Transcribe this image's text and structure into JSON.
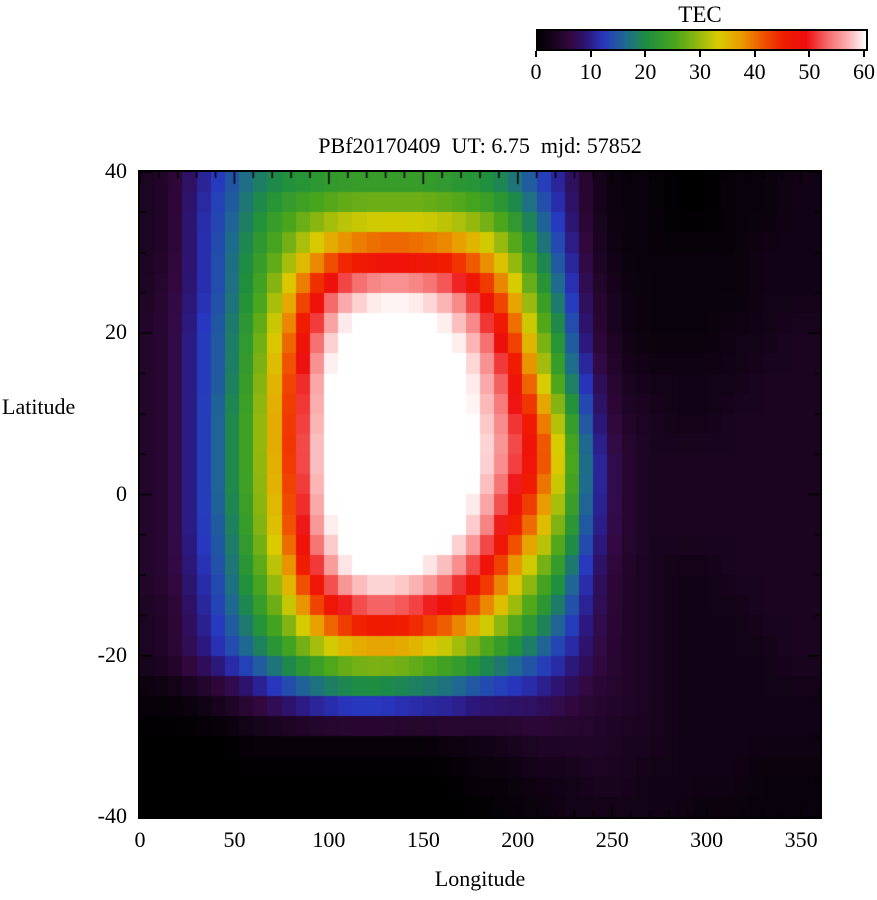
{
  "chart_data": {
    "type": "heatmap",
    "title": "PBf20170409  UT: 6.75  mjd: 57852",
    "xlabel": "Longitude",
    "ylabel": "Latitude",
    "colorbar_label": "TEC",
    "xlim": [
      0,
      360
    ],
    "ylim": [
      -40,
      40
    ],
    "zlim": [
      0,
      60
    ],
    "x_ticks": [
      0,
      50,
      100,
      150,
      200,
      250,
      300,
      350
    ],
    "y_ticks": [
      40,
      20,
      0,
      -20,
      -40
    ],
    "colorbar_ticks": [
      0,
      10,
      20,
      30,
      40,
      50,
      60
    ],
    "lon": [
      0,
      15,
      30,
      45,
      60,
      75,
      90,
      105,
      120,
      135,
      150,
      165,
      180,
      195,
      210,
      225,
      240,
      255,
      270,
      285,
      300,
      315,
      330,
      345
    ],
    "lat": [
      40,
      35,
      30,
      25,
      20,
      15,
      10,
      5,
      0,
      -5,
      -10,
      -15,
      -20,
      -25,
      -30,
      -35,
      -40
    ],
    "tec": [
      [
        3,
        4,
        9,
        13,
        17,
        19,
        20,
        21,
        21,
        21,
        21,
        20,
        19,
        17,
        13,
        9,
        3,
        1,
        1,
        0,
        0,
        1,
        1,
        2
      ],
      [
        3,
        4,
        10,
        14,
        19,
        23,
        26,
        28,
        29,
        29,
        29,
        28,
        26,
        22,
        16,
        10,
        3,
        1,
        1,
        0,
        0,
        1,
        1,
        2
      ],
      [
        3,
        4,
        10,
        15,
        21,
        27,
        34,
        40,
        43,
        44,
        43,
        41,
        37,
        30,
        20,
        12,
        4,
        1,
        1,
        1,
        1,
        1,
        2,
        2
      ],
      [
        3,
        5,
        10,
        15,
        22,
        32,
        44,
        54,
        58,
        59,
        58,
        55,
        48,
        38,
        25,
        14,
        5,
        2,
        1,
        1,
        1,
        1,
        2,
        2
      ],
      [
        4,
        5,
        11,
        16,
        24,
        36,
        50,
        60,
        62,
        62,
        62,
        60,
        55,
        45,
        30,
        17,
        6,
        2,
        1,
        1,
        1,
        2,
        2,
        3
      ],
      [
        4,
        5,
        11,
        16,
        25,
        38,
        54,
        62,
        63,
        63,
        63,
        62,
        58,
        50,
        35,
        20,
        8,
        3,
        2,
        2,
        2,
        2,
        3,
        3
      ],
      [
        4,
        5,
        11,
        17,
        26,
        39,
        55,
        62,
        63,
        63,
        63,
        62,
        59,
        53,
        42,
        26,
        10,
        4,
        3,
        2,
        2,
        3,
        3,
        3
      ],
      [
        4,
        5,
        11,
        17,
        26,
        39,
        56,
        62,
        63,
        63,
        63,
        62,
        60,
        54,
        46,
        30,
        12,
        5,
        3,
        3,
        3,
        3,
        3,
        3
      ],
      [
        4,
        5,
        11,
        17,
        26,
        38,
        55,
        62,
        63,
        63,
        63,
        62,
        59,
        51,
        42,
        28,
        12,
        5,
        3,
        3,
        3,
        3,
        3,
        3
      ],
      [
        4,
        5,
        11,
        16,
        25,
        37,
        53,
        61,
        63,
        63,
        62,
        61,
        56,
        46,
        36,
        24,
        11,
        5,
        3,
        3,
        3,
        3,
        3,
        3
      ],
      [
        4,
        5,
        10,
        15,
        23,
        33,
        47,
        57,
        61,
        61,
        59,
        55,
        48,
        38,
        28,
        19,
        9,
        4,
        3,
        2,
        2,
        3,
        3,
        3
      ],
      [
        3,
        4,
        9,
        14,
        20,
        28,
        38,
        46,
        50,
        50,
        48,
        44,
        38,
        30,
        22,
        15,
        8,
        4,
        3,
        2,
        2,
        2,
        3,
        3
      ],
      [
        3,
        4,
        8,
        12,
        16,
        21,
        26,
        30,
        32,
        32,
        30,
        27,
        23,
        19,
        15,
        11,
        7,
        4,
        3,
        2,
        2,
        2,
        2,
        3
      ],
      [
        1,
        1,
        2,
        4,
        7,
        10,
        13,
        15,
        16,
        15,
        14,
        13,
        11,
        10,
        9,
        7,
        5,
        4,
        3,
        2,
        2,
        2,
        2,
        2
      ],
      [
        0,
        0,
        0,
        0,
        1,
        1,
        1,
        1,
        1,
        1,
        1,
        2,
        2,
        3,
        4,
        4,
        4,
        3,
        3,
        2,
        2,
        2,
        2,
        2
      ],
      [
        0,
        0,
        0,
        0,
        0,
        0,
        0,
        0,
        0,
        0,
        0,
        0,
        1,
        1,
        2,
        2,
        3,
        3,
        2,
        2,
        2,
        2,
        1,
        1
      ],
      [
        0,
        0,
        0,
        0,
        0,
        0,
        0,
        0,
        0,
        0,
        0,
        0,
        0,
        1,
        1,
        2,
        2,
        2,
        2,
        2,
        1,
        1,
        1,
        1
      ]
    ],
    "colormap_stops": [
      {
        "v": 0,
        "c": "#000000"
      },
      {
        "v": 3,
        "c": "#1a0420"
      },
      {
        "v": 6,
        "c": "#32083e"
      },
      {
        "v": 9,
        "c": "#2c1678"
      },
      {
        "v": 12,
        "c": "#2737c0"
      },
      {
        "v": 16,
        "c": "#1e6a90"
      },
      {
        "v": 20,
        "c": "#1e8f3e"
      },
      {
        "v": 25,
        "c": "#48a51c"
      },
      {
        "v": 29,
        "c": "#8eb610"
      },
      {
        "v": 33,
        "c": "#d8cc00"
      },
      {
        "v": 37,
        "c": "#e89e00"
      },
      {
        "v": 41,
        "c": "#ef5800"
      },
      {
        "v": 45,
        "c": "#f01c00"
      },
      {
        "v": 49,
        "c": "#ee0e0e"
      },
      {
        "v": 53,
        "c": "#f56a6a"
      },
      {
        "v": 57,
        "c": "#fbb6b6"
      },
      {
        "v": 60,
        "c": "#ffffff"
      }
    ]
  }
}
